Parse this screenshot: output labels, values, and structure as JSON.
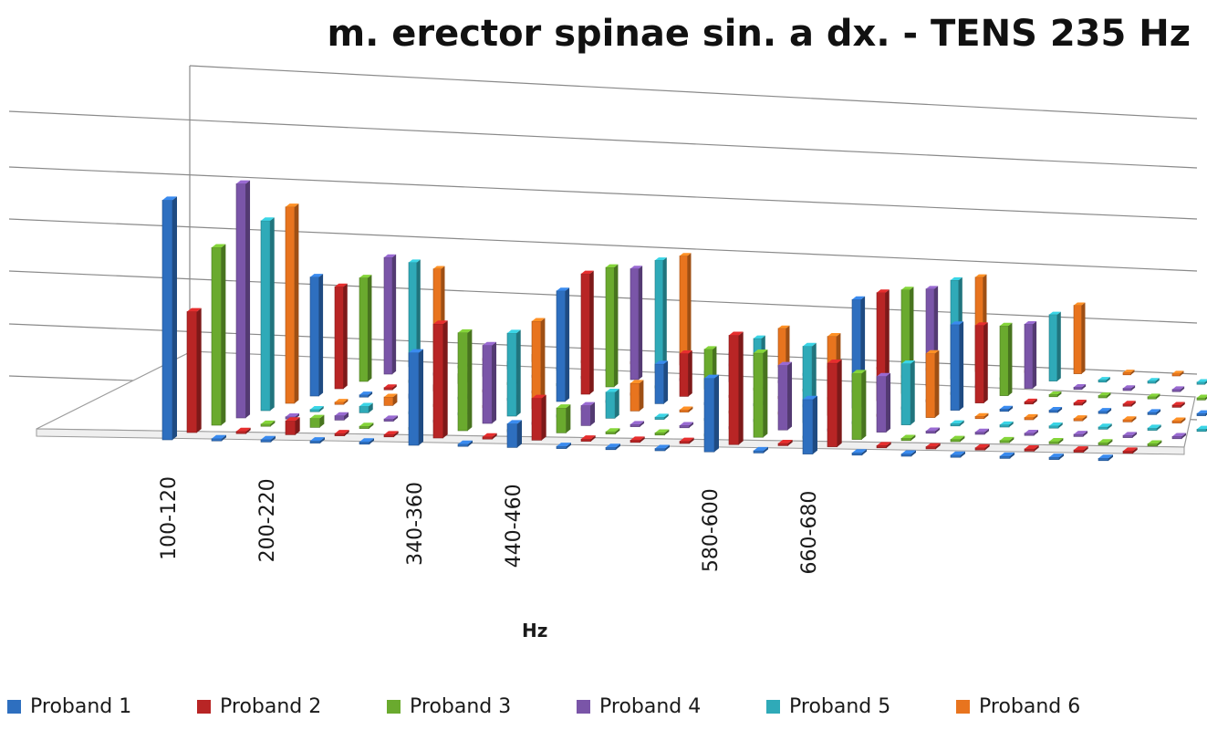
{
  "chart_data": {
    "type": "bar",
    "style": "3d-column",
    "title": "m. erector spinae sin. a dx. - TENS 235 Hz",
    "xlabel": "Hz",
    "ylabel": "",
    "legend_position": "bottom",
    "grid": true,
    "ylim": [
      0,
      7
    ],
    "categories": [
      "100-120",
      "",
      "200-220",
      "",
      "",
      "340-360",
      "",
      "440-460",
      "",
      "",
      "",
      "580-600",
      "",
      "660-680",
      "",
      "",
      "",
      "",
      "",
      ""
    ],
    "series": [
      {
        "name": "Proband 1",
        "color": "#2e6fbf",
        "values": [
          5.05,
          0,
          0.05,
          0,
          0,
          1.95,
          0,
          0.5,
          0,
          0,
          0,
          1.55,
          0,
          1.15,
          0,
          0,
          0,
          0,
          0,
          0
        ]
      },
      {
        "name": "Proband 2",
        "color": "#b82525",
        "values": [
          2.6,
          0,
          0.3,
          0,
          0,
          2.45,
          0,
          0.9,
          0,
          0,
          0,
          2.35,
          0,
          1.8,
          0,
          0,
          0,
          0,
          0,
          0
        ]
      },
      {
        "name": "Proband 3",
        "color": "#6aaa2e",
        "values": [
          3.9,
          0,
          0.2,
          0,
          0,
          2.15,
          0,
          0.55,
          0,
          0,
          0,
          1.85,
          0,
          1.45,
          0,
          0,
          0,
          0,
          0,
          0
        ]
      },
      {
        "name": "Proband 4",
        "color": "#7a55a8",
        "values": [
          5.25,
          0,
          0.1,
          0,
          0,
          1.75,
          0,
          0.45,
          0,
          0,
          0,
          1.45,
          0,
          1.25,
          0,
          0,
          0,
          0,
          0,
          0
        ]
      },
      {
        "name": "Proband 5",
        "color": "#2faab8",
        "values": [
          4.35,
          0,
          0.15,
          0,
          0,
          1.9,
          0,
          0.6,
          0,
          0,
          0,
          1.75,
          0,
          1.4,
          0,
          0,
          0,
          0,
          0,
          0
        ]
      },
      {
        "name": "Proband 6",
        "color": "#e8741e",
        "values": [
          4.6,
          0,
          0.2,
          0,
          0,
          2.05,
          0,
          0.65,
          0,
          0,
          0,
          1.85,
          0,
          1.5,
          0,
          0,
          0,
          0,
          0,
          0
        ]
      },
      {
        "name": "",
        "color": "#2e6fbf",
        "values": [
          2.85,
          0,
          0.1,
          0,
          0,
          2.65,
          0,
          0.95,
          0,
          0,
          0,
          2.6,
          0,
          2.05,
          0,
          0,
          0,
          0,
          0,
          0
        ]
      },
      {
        "name": "",
        "color": "#b82525",
        "values": [
          2.5,
          0,
          0.15,
          0,
          0,
          2.95,
          0,
          1.05,
          0,
          0,
          0,
          2.65,
          0,
          1.9,
          0,
          0,
          0,
          0,
          0,
          0
        ]
      },
      {
        "name": "",
        "color": "#6aaa2e",
        "values": [
          2.6,
          0,
          0.25,
          0,
          0,
          3.0,
          0,
          1.0,
          0,
          0,
          0,
          2.6,
          0,
          1.75,
          0,
          0,
          0,
          0,
          0,
          0
        ]
      },
      {
        "name": "",
        "color": "#7a55a8",
        "values": [
          3.0,
          0,
          0.25,
          0,
          0,
          2.85,
          0,
          0.75,
          0,
          0,
          0,
          2.5,
          0,
          1.65,
          0,
          0,
          0,
          0,
          0,
          0
        ]
      },
      {
        "name": "",
        "color": "#2faab8",
        "values": [
          2.75,
          0,
          0.2,
          0,
          0,
          2.95,
          0,
          0.95,
          0,
          0,
          0,
          2.6,
          0,
          1.75,
          0,
          0,
          0,
          0,
          0,
          0
        ]
      },
      {
        "name": "",
        "color": "#e8741e",
        "values": [
          2.45,
          0,
          0.2,
          0,
          0,
          2.95,
          0,
          1.05,
          0,
          0,
          0,
          2.55,
          0,
          1.85,
          0,
          0,
          0,
          0,
          0,
          0
        ]
      }
    ]
  }
}
